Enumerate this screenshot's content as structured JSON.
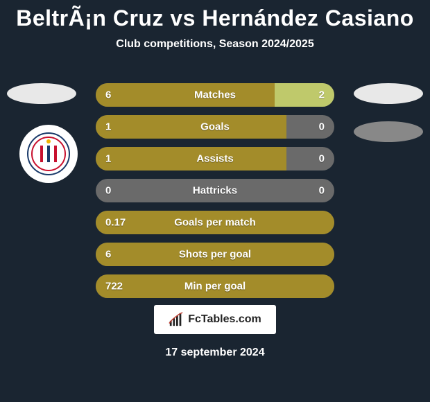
{
  "title": "BeltrÃ¡n Cruz vs Hernández Casiano",
  "subtitle": "Club competitions, Season 2024/2025",
  "footer_brand": "FcTables.com",
  "footer_date": "17 september 2024",
  "colors": {
    "background": "#1a2531",
    "bar_track": "#6a6a6a",
    "bar_left": "#a38c2a",
    "bar_right": "#bfc96b",
    "text": "#ffffff",
    "footer_bg": "#ffffff",
    "footer_text": "#222222"
  },
  "bars": [
    {
      "label": "Matches",
      "left": "6",
      "right": "2",
      "left_pct": 75,
      "right_pct": 25
    },
    {
      "label": "Goals",
      "left": "1",
      "right": "0",
      "left_pct": 80,
      "right_pct": 0
    },
    {
      "label": "Assists",
      "left": "1",
      "right": "0",
      "left_pct": 80,
      "right_pct": 0
    },
    {
      "label": "Hattricks",
      "left": "0",
      "right": "0",
      "left_pct": 0,
      "right_pct": 0
    },
    {
      "label": "Goals per match",
      "left": "0.17",
      "right": "",
      "left_pct": 100,
      "right_pct": 0
    },
    {
      "label": "Shots per goal",
      "left": "6",
      "right": "",
      "left_pct": 100,
      "right_pct": 0
    },
    {
      "label": "Min per goal",
      "left": "722",
      "right": "",
      "left_pct": 100,
      "right_pct": 0
    }
  ],
  "players": {
    "left_name": "BeltrÃ¡n Cruz",
    "right_name": "Hernández Casiano"
  }
}
